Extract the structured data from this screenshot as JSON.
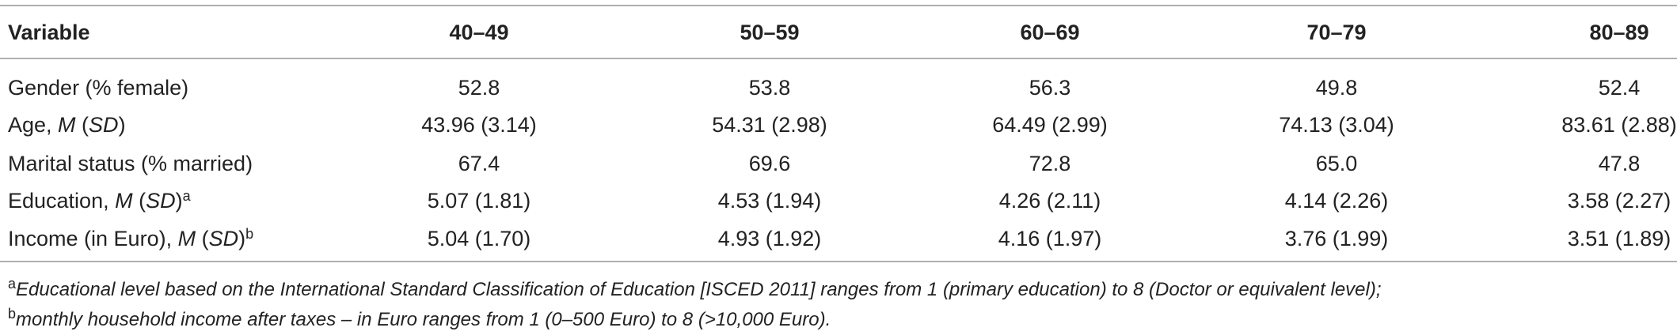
{
  "table": {
    "header": [
      "Variable",
      "40–49",
      "50–59",
      "60–69",
      "70–79",
      "80–89"
    ],
    "rows": [
      {
        "label": [
          {
            "text": "Gender (% female)"
          }
        ],
        "values": [
          "52.8",
          "53.8",
          "56.3",
          "49.8",
          "52.4"
        ]
      },
      {
        "label": [
          {
            "text": "Age, "
          },
          {
            "text": "M",
            "style": "italic"
          },
          {
            "text": " ("
          },
          {
            "text": "SD",
            "style": "italic"
          },
          {
            "text": ")"
          }
        ],
        "values": [
          "43.96 (3.14)",
          "54.31 (2.98)",
          "64.49 (2.99)",
          "74.13 (3.04)",
          "83.61 (2.88)"
        ]
      },
      {
        "label": [
          {
            "text": "Marital status (% married)"
          }
        ],
        "values": [
          "67.4",
          "69.6",
          "72.8",
          "65.0",
          "47.8"
        ]
      },
      {
        "label": [
          {
            "text": "Education, "
          },
          {
            "text": "M",
            "style": "italic"
          },
          {
            "text": " ("
          },
          {
            "text": "SD",
            "style": "italic"
          },
          {
            "text": ")"
          },
          {
            "text": "a",
            "style": "superscript"
          }
        ],
        "values": [
          "5.07 (1.81)",
          "4.53 (1.94)",
          "4.26 (2.11)",
          "4.14 (2.26)",
          "3.58 (2.27)"
        ]
      },
      {
        "label": [
          {
            "text": "Income (in Euro), "
          },
          {
            "text": "M",
            "style": "italic"
          },
          {
            "text": " ("
          },
          {
            "text": "SD",
            "style": "italic"
          },
          {
            "text": ")"
          },
          {
            "text": "b",
            "style": "superscript"
          }
        ],
        "values": [
          "5.04 (1.70)",
          "4.93 (1.92)",
          "4.16 (1.97)",
          "3.76 (1.99)",
          "3.51 (1.89)"
        ]
      }
    ],
    "footnotes": [
      {
        "mark": "a",
        "text": "Educational level based on the International Standard Classification of Education [ISCED 2011] ranges from 1 (primary education) to 8 (Doctor or equivalent level);"
      },
      {
        "mark": "b",
        "text": "monthly household income after taxes – in Euro ranges from 1 (0–500 Euro) to 8 (>10,000 Euro)."
      }
    ]
  }
}
